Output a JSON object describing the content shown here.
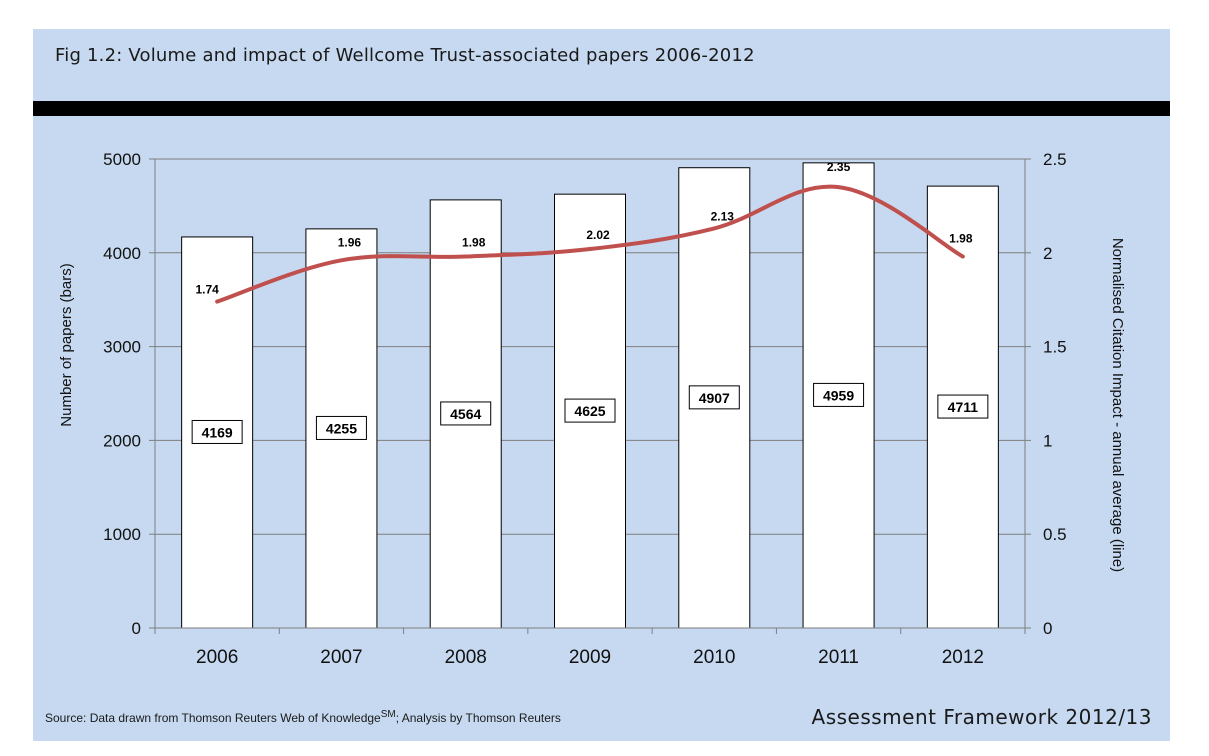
{
  "header": {
    "title": "Fig 1.2:  Volume and impact of Wellcome Trust-associated papers 2006-2012"
  },
  "footer": {
    "source_prefix": "Source: Data drawn from Thomson Reuters Web of Knowledge",
    "source_sup": "SM",
    "source_suffix": "; Analysis by Thomson Reuters",
    "framework": "Assessment Framework 2012/13"
  },
  "colors": {
    "panel": "#c6d9f0",
    "bar_fill": "#ffffff",
    "line": "#c0504d",
    "band": "#000000"
  },
  "chart_data": {
    "type": "bar",
    "categories": [
      "2006",
      "2007",
      "2008",
      "2009",
      "2010",
      "2011",
      "2012"
    ],
    "series": [
      {
        "type": "bar",
        "axis": "left",
        "values": [
          4169,
          4255,
          4564,
          4625,
          4907,
          4959,
          4711
        ]
      },
      {
        "type": "line",
        "axis": "right",
        "smooth": true,
        "values": [
          1.74,
          1.96,
          1.98,
          2.02,
          2.13,
          2.35,
          1.98
        ]
      }
    ],
    "bar_labels": [
      "4169",
      "4255",
      "4564",
      "4625",
      "4907",
      "4959",
      "4711"
    ],
    "line_labels": [
      "1.74",
      "1.96",
      "1.98",
      "2.02",
      "2.13",
      "2.35",
      "1.98"
    ],
    "ylabel": "Number of papers (bars)",
    "y2label": "Normalised Citation Impact - annual average (line)",
    "ylim": [
      0,
      5000
    ],
    "y2lim": [
      0,
      2.5
    ],
    "yticks": [
      "0",
      "1000",
      "2000",
      "3000",
      "4000",
      "5000"
    ],
    "y2ticks": [
      "0",
      "0.5",
      "1",
      "1.5",
      "2",
      "2.5"
    ],
    "grid": true
  }
}
